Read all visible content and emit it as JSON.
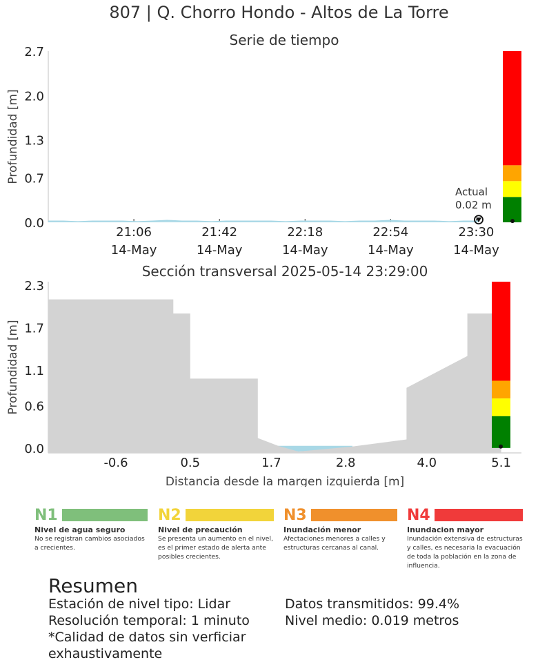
{
  "title": "807 | Q. Chorro Hondo - Altos de La Torre",
  "colors": {
    "water": "#a8d8e6",
    "terrain": "#d3d3d3",
    "n1": "#7fbf7b",
    "n2": "#f2d43a",
    "n3": "#f0902c",
    "n4": "#f03a3a",
    "level_red": "#ff0000",
    "level_orange": "#ffa500",
    "level_yellow": "#ffff00",
    "level_green": "#008000"
  },
  "chart_data": [
    {
      "type": "area",
      "title": "Serie de tiempo",
      "ylabel": "Profundidad [m]",
      "xlabel": "",
      "ylim": [
        0,
        2.7
      ],
      "yticks": [
        "0.0",
        "0.7",
        "1.3",
        "2.0",
        "2.7"
      ],
      "xticks": [
        {
          "time": "21:06",
          "date": "14-May"
        },
        {
          "time": "21:42",
          "date": "14-May"
        },
        {
          "time": "22:18",
          "date": "14-May"
        },
        {
          "time": "22:54",
          "date": "14-May"
        },
        {
          "time": "23:30",
          "date": "14-May"
        }
      ],
      "x_range_minutes": [
        20.5,
        23.5
      ],
      "series_depth": [
        0.02,
        0.02,
        0.01,
        0.02,
        0.02,
        0.02,
        0.01,
        0.02,
        0.03,
        0.02,
        0.02,
        0.01,
        0.02,
        0.02,
        0.02,
        0.02,
        0.01,
        0.02,
        0.02,
        0.02,
        0.01,
        0.02,
        0.02,
        0.03,
        0.02,
        0.02,
        0.02,
        0.01,
        0.02,
        0.02
      ],
      "annotation": {
        "label": "Actual",
        "value": "0.02 m",
        "x_time": "23:29",
        "depth": 0.02
      },
      "level_bands": [
        {
          "color": "green",
          "from": 0.0,
          "to": 0.4
        },
        {
          "color": "yellow",
          "from": 0.4,
          "to": 0.65
        },
        {
          "color": "orange",
          "from": 0.65,
          "to": 0.9
        },
        {
          "color": "red",
          "from": 0.9,
          "to": 2.7
        }
      ]
    },
    {
      "type": "area",
      "title": "Sección transversal 2025-05-14 23:29:00",
      "ylabel": "Profundidad [m]",
      "xlabel": "Distancia desde la margen izquierda [m]",
      "xlim": [
        -1.6,
        5.4
      ],
      "ylim": [
        -0.07,
        2.35
      ],
      "xticks": [
        "-0.6",
        "0.5",
        "1.7",
        "2.8",
        "4.0",
        "5.1"
      ],
      "yticks": [
        "0.0",
        "0.6",
        "1.1",
        "1.7",
        "2.3"
      ],
      "terrain_profile": [
        [
          -1.6,
          2.1
        ],
        [
          0.25,
          2.1
        ],
        [
          0.25,
          1.9
        ],
        [
          0.5,
          1.9
        ],
        [
          0.5,
          0.98
        ],
        [
          1.5,
          0.98
        ],
        [
          1.5,
          0.14
        ],
        [
          1.8,
          0.03
        ],
        [
          2.1,
          -0.05
        ],
        [
          2.9,
          0.02
        ],
        [
          3.7,
          0.12
        ],
        [
          3.7,
          0.85
        ],
        [
          4.6,
          1.3
        ],
        [
          4.6,
          1.9
        ],
        [
          5.1,
          1.9
        ],
        [
          5.1,
          0.0
        ]
      ],
      "water_level": 0.03,
      "water_extent": [
        1.7,
        2.9
      ],
      "level_bands": [
        {
          "color": "green",
          "from": 0.0,
          "to": 0.45
        },
        {
          "color": "yellow",
          "from": 0.45,
          "to": 0.7
        },
        {
          "color": "orange",
          "from": 0.7,
          "to": 0.95
        },
        {
          "color": "red",
          "from": 0.95,
          "to": 2.35
        }
      ]
    }
  ],
  "legend": [
    {
      "code": "N1",
      "title": "Nivel de agua seguro",
      "desc": "No se registran cambios asociados a crecientes."
    },
    {
      "code": "N2",
      "title": "Nivel de precaución",
      "desc": "Se presenta un aumento en el nivel, es el primer estado de alerta ante posibles crecientes."
    },
    {
      "code": "N3",
      "title": "Inundación menor",
      "desc": "Afectaciones menores a calles y estructuras cercanas al canal."
    },
    {
      "code": "N4",
      "title": "Inundacion mayor",
      "desc": "Inundación extensiva de estructuras y calles, es necesaria la evacuación de toda la población en la zona de influencia."
    }
  ],
  "summary": {
    "title": "Resumen",
    "left": [
      "Estación de nivel tipo: Lidar",
      "Resolución temporal: 1 minuto",
      "*Calidad de datos sin verficiar",
      "exhaustivamente"
    ],
    "right": [
      "Datos transmitidos: 99.4%",
      "Nivel medio: 0.019 metros"
    ]
  }
}
